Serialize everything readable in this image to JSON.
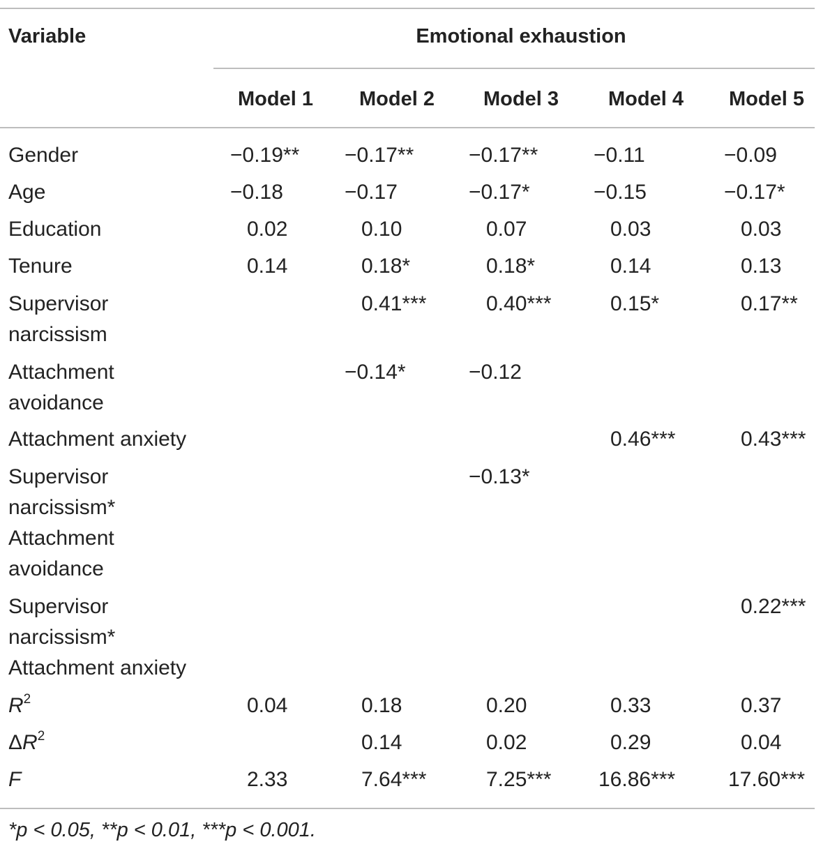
{
  "table": {
    "stub_header": "Variable",
    "group_header": "Emotional exhaustion",
    "columns": [
      "Model 1",
      "Model 2",
      "Model 3",
      "Model 4",
      "Model 5"
    ],
    "rows": [
      {
        "label": "Gender",
        "values": [
          "−0.19**",
          "−0.17**",
          "−0.17**",
          "−0.11",
          "−0.09"
        ]
      },
      {
        "label": "Age",
        "values": [
          "−0.18",
          "−0.17",
          "−0.17*",
          "−0.15",
          "−0.17*"
        ]
      },
      {
        "label": "Education",
        "values": [
          "0.02",
          "0.10",
          "0.07",
          "0.03",
          "0.03"
        ]
      },
      {
        "label": "Tenure",
        "values": [
          "0.14",
          "0.18*",
          "0.18*",
          "0.14",
          "0.13"
        ]
      },
      {
        "label": "Supervisor narcissism",
        "values": [
          "",
          "0.41***",
          "0.40***",
          "0.15*",
          "0.17**"
        ]
      },
      {
        "label": "Attachment avoidance",
        "values": [
          "",
          "−0.14*",
          "−0.12",
          "",
          ""
        ]
      },
      {
        "label": "Attachment anxiety",
        "values": [
          "",
          "",
          "",
          "0.46***",
          "0.43***"
        ]
      },
      {
        "label": "Supervisor narcissism* Attachment avoidance",
        "values": [
          "",
          "",
          "−0.13*",
          "",
          ""
        ]
      },
      {
        "label": "Supervisor narcissism* Attachment anxiety",
        "values": [
          "",
          "",
          "",
          "",
          "0.22***"
        ]
      },
      {
        "label_main": "R",
        "label_sup": "2",
        "values": [
          "0.04",
          "0.18",
          "0.20",
          "0.33",
          "0.37"
        ]
      },
      {
        "label_prefix": "Δ",
        "label_main": "R",
        "label_sup": "2",
        "values": [
          "",
          "0.14",
          "0.02",
          "0.29",
          "0.04"
        ]
      },
      {
        "label_main": "F",
        "values": [
          "2.33",
          "7.64***",
          "7.25***",
          "16.86***",
          "17.60***"
        ]
      }
    ],
    "footnote": "*p < 0.05, **p < 0.01, ***p < 0.001."
  }
}
